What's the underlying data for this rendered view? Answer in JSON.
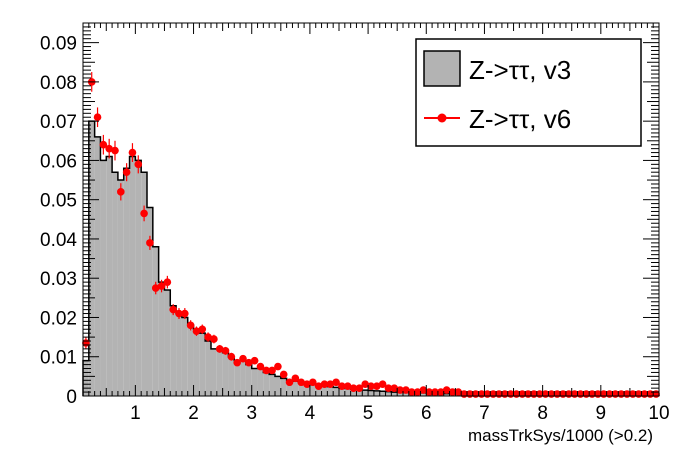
{
  "chart_data": {
    "type": "bar",
    "xlabel": "massTrkSys/1000 (>0.2)",
    "ylabel": "",
    "xlim": [
      0.1,
      10
    ],
    "ylim": [
      0,
      0.095
    ],
    "x_ticks": [
      1,
      2,
      3,
      4,
      5,
      6,
      7,
      8,
      9,
      10
    ],
    "y_ticks": [
      0,
      0.01,
      0.02,
      0.03,
      0.04,
      0.05,
      0.06,
      0.07,
      0.08,
      0.09
    ],
    "x_tick_labels": [
      "1",
      "2",
      "3",
      "4",
      "5",
      "6",
      "7",
      "8",
      "9",
      "10"
    ],
    "y_tick_labels": [
      "0",
      "0.01",
      "0.02",
      "0.03",
      "0.04",
      "0.05",
      "0.06",
      "0.07",
      "0.08",
      "0.09"
    ],
    "grid": false,
    "legend_position": "top-right",
    "bin_width": 0.1,
    "bin_start": 0.1,
    "series": [
      {
        "name": "Z->ττ, v3",
        "style": "filled histogram",
        "color": "#b3b3b3",
        "values": [
          0.009,
          0.07,
          0.066,
          0.06,
          0.061,
          0.057,
          0.055,
          0.058,
          0.061,
          0.06,
          0.057,
          0.048,
          0.038,
          0.029,
          0.027,
          0.023,
          0.021,
          0.02,
          0.018,
          0.017,
          0.016,
          0.014,
          0.012,
          0.012,
          0.011,
          0.01,
          0.009,
          0.009,
          0.008,
          0.007,
          0.007,
          0.006,
          0.0055,
          0.005,
          0.0045,
          0.004,
          0.0038,
          0.0035,
          0.0032,
          0.003,
          0.0028,
          0.0026,
          0.0024,
          0.0022,
          0.002,
          0.0019,
          0.0017,
          0.0016,
          0.0015,
          0.0014,
          0.0013,
          0.0012,
          0.0011,
          0.001,
          0.001,
          0.0009,
          0.0009,
          0.0008,
          0.0008,
          0.0007,
          0.0007,
          0.0006,
          0.0006,
          0.0006,
          0.0005,
          0.0005,
          0.0005,
          0.0004,
          0.0004,
          0.0004,
          0.0004,
          0.0003,
          0.0003,
          0.0003,
          0.0003,
          0.0003,
          0.0003,
          0.0002,
          0.0002,
          0.0002,
          0.0002,
          0.0002,
          0.0002,
          0.0002,
          0.0002,
          0.0002,
          0.0001,
          0.0001,
          0.0001,
          0.0001,
          0.0001,
          0.0001,
          0.0001,
          0.0001,
          0.0001,
          0.0001,
          0.0001,
          0.0001,
          0.0001
        ]
      },
      {
        "name": "Z->ττ, v6",
        "style": "markers with error bars",
        "color": "#ff0000",
        "values": [
          0.0135,
          0.08,
          0.071,
          0.064,
          0.063,
          0.0625,
          0.052,
          0.057,
          0.062,
          0.059,
          0.0465,
          0.039,
          0.0275,
          0.028,
          0.029,
          0.022,
          0.021,
          0.021,
          0.018,
          0.0165,
          0.017,
          0.015,
          0.0145,
          0.012,
          0.0115,
          0.01,
          0.0085,
          0.0095,
          0.0085,
          0.009,
          0.0075,
          0.0065,
          0.0065,
          0.0075,
          0.0055,
          0.0035,
          0.0045,
          0.0035,
          0.003,
          0.0035,
          0.0025,
          0.003,
          0.003,
          0.0035,
          0.0025,
          0.0025,
          0.002,
          0.002,
          0.003,
          0.0025,
          0.0025,
          0.003,
          0.002,
          0.002,
          0.0015,
          0.0015,
          0.001,
          0.001,
          0.0015,
          0.001,
          0.001,
          0.001,
          0.0015,
          0.001,
          0.001,
          0.0005,
          0.0005,
          0.0005,
          0.0005,
          0.0005,
          0.0005,
          0.0005,
          0.0005,
          0.0005,
          0.0005,
          0.0005,
          0.0005,
          0.0005,
          0.0005,
          0.0005,
          0.0005,
          0.0005,
          0.0005,
          0.0005,
          0.0005,
          0.0005,
          0.0005,
          0.0005,
          0.0005,
          0.0005,
          0.0005,
          0.0005,
          0.0005,
          0.0005,
          0.0005,
          0.0005,
          0.0005,
          0.0005,
          0.0005
        ],
        "errors": [
          0.0015,
          0.0025,
          0.0025,
          0.0025,
          0.0025,
          0.0025,
          0.0022,
          0.0023,
          0.0024,
          0.0023,
          0.002,
          0.0018,
          0.0016,
          0.0016,
          0.0016,
          0.0014,
          0.0014,
          0.0014,
          0.0013,
          0.0012,
          0.0012,
          0.0012,
          0.0011,
          0.001,
          0.001,
          0.001,
          0.0009,
          0.0009,
          0.0009,
          0.0009,
          0.0008,
          0.0008,
          0.0008,
          0.0008,
          0.0007,
          0.0006,
          0.0006,
          0.0006,
          0.0005,
          0.0006,
          0.0005,
          0.0005,
          0.0005,
          0.0006,
          0.0005,
          0.0005,
          0.0004,
          0.0004,
          0.0005,
          0.0005,
          0.0005,
          0.0005,
          0.0004,
          0.0004,
          0.0004,
          0.0004,
          0.0003,
          0.0003,
          0.0004,
          0.0003,
          0.0003,
          0.0003,
          0.0004,
          0.0003,
          0.0003,
          0.0002,
          0.0002,
          0.0002,
          0.0002,
          0.0002,
          0.0002,
          0.0002,
          0.0002,
          0.0002,
          0.0002,
          0.0002,
          0.0002,
          0.0002,
          0.0002,
          0.0002,
          0.0002,
          0.0002,
          0.0002,
          0.0002,
          0.0002,
          0.0002,
          0.0002,
          0.0002,
          0.0002,
          0.0002,
          0.0002,
          0.0002,
          0.0002,
          0.0002,
          0.0002,
          0.0002,
          0.0002,
          0.0002,
          0.0002
        ]
      }
    ]
  }
}
